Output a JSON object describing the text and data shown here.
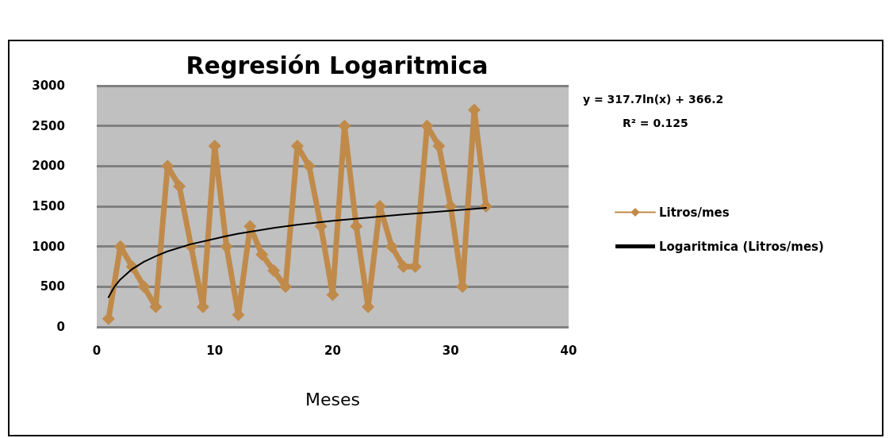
{
  "chart_data": {
    "type": "line",
    "title": "Regresión Logaritmica",
    "xlabel": "Meses",
    "x": [
      1,
      2,
      3,
      4,
      5,
      6,
      7,
      8,
      9,
      10,
      11,
      12,
      13,
      14,
      15,
      16,
      17,
      18,
      19,
      20,
      21,
      22,
      23,
      24,
      25,
      26,
      27,
      28,
      29,
      30,
      31,
      32,
      33
    ],
    "series": [
      {
        "name": "Litros/mes",
        "color": "#c08a4a",
        "values": [
          100,
          1000,
          750,
          500,
          250,
          2000,
          1750,
          1000,
          250,
          2250,
          1000,
          150,
          1250,
          900,
          700,
          500,
          2250,
          2000,
          1250,
          400,
          2500,
          1250,
          250,
          1500,
          1000,
          750,
          750,
          2500,
          2250,
          1500,
          500,
          2700,
          1500
        ]
      },
      {
        "name": "Logaritmica (Litros/mes)",
        "color": "#000000",
        "marker": "none",
        "x": [
          1,
          1.5,
          2,
          3,
          4,
          5,
          6,
          8,
          11,
          12,
          15,
          17,
          20,
          23,
          26,
          33
        ],
        "values": [
          370,
          500,
          590,
          720,
          810,
          880,
          940,
          1030,
          1130,
          1160,
          1230,
          1270,
          1320,
          1360,
          1400,
          1480
        ]
      }
    ],
    "annotations": [
      "y = 317.7ln(x) + 366.2",
      "R² = 0.125"
    ],
    "xlim": [
      0,
      40
    ],
    "xticks": [
      0,
      10,
      20,
      30,
      40
    ],
    "ylim": [
      0,
      3000
    ],
    "yticks": [
      0,
      500,
      1000,
      1500,
      2000,
      2500,
      3000
    ],
    "grid": "y",
    "legend": "right",
    "marker": "diamond",
    "line_style": "solid"
  }
}
